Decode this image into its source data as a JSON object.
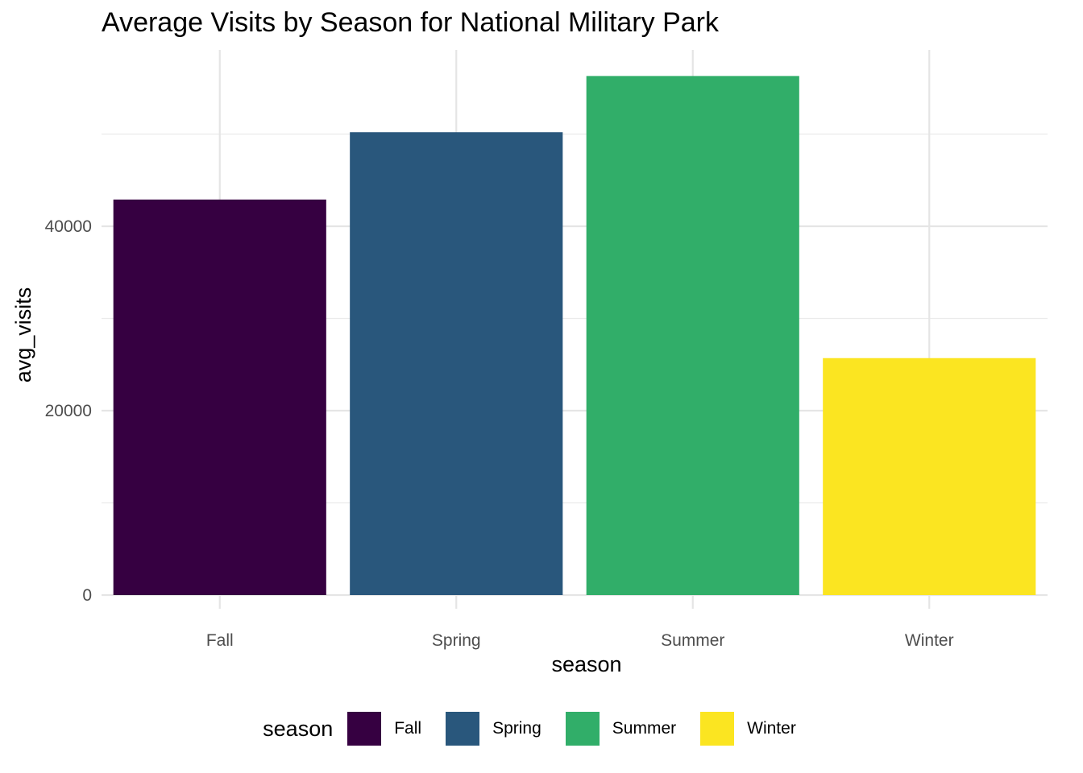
{
  "chart_data": {
    "type": "bar",
    "title": "Average Visits by Season for National Military Park",
    "xlabel": "season",
    "ylabel": "avg_visits",
    "categories": [
      "Fall",
      "Spring",
      "Summer",
      "Winter"
    ],
    "values": [
      42900,
      50200,
      56300,
      25700
    ],
    "colors": [
      "#360041",
      "#29577c",
      "#31ae69",
      "#fbe521"
    ],
    "yticks": [
      0,
      20000,
      40000
    ],
    "ylim": [
      0,
      59000
    ],
    "grid": true,
    "legend": {
      "title": "season",
      "position": "bottom",
      "entries": [
        "Fall",
        "Spring",
        "Summer",
        "Winter"
      ]
    }
  }
}
